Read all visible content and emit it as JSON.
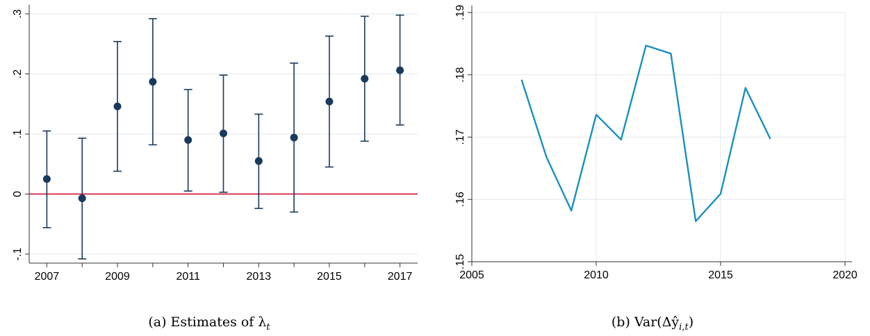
{
  "chart_data": [
    {
      "type": "scatter",
      "caption": "(a) Estimates of λ",
      "caption_subscript": "t",
      "x": [
        2007,
        2008,
        2009,
        2010,
        2011,
        2012,
        2013,
        2014,
        2015,
        2016,
        2017
      ],
      "series": [
        {
          "values": [
            0.025,
            -0.007,
            0.146,
            0.187,
            0.09,
            0.101,
            0.055,
            0.094,
            0.154,
            0.192,
            0.206
          ],
          "ci_low": [
            -0.056,
            -0.108,
            0.038,
            0.082,
            0.005,
            0.003,
            -0.024,
            -0.03,
            0.045,
            0.088,
            0.115
          ],
          "ci_high": [
            0.105,
            0.093,
            0.254,
            0.292,
            0.174,
            0.198,
            0.133,
            0.218,
            0.263,
            0.296,
            0.298
          ]
        }
      ],
      "reference_line": {
        "y": 0,
        "color": "#d1223f"
      },
      "xticks": [
        2007,
        2009,
        2011,
        2013,
        2015,
        2017
      ],
      "xticks_minor": [
        2008,
        2010,
        2012,
        2014,
        2016
      ],
      "yticks": [
        -0.1,
        0,
        0.1,
        0.2,
        0.3
      ],
      "ytick_labels": [
        "-.1",
        "0",
        ".1",
        ".2",
        ".3"
      ],
      "xlim": [
        2006.5,
        2017.5
      ],
      "ylim": [
        -0.115,
        0.315
      ],
      "grid": "horizontal",
      "colors": {
        "marker": "#1a3a5c",
        "grid": "#e6ecf0"
      }
    },
    {
      "type": "line",
      "caption": "(b) Var(Δŷ",
      "caption_subscript": "i,t",
      "caption_close": ")",
      "x": [
        2007,
        2008,
        2009,
        2010,
        2011,
        2012,
        2013,
        2014,
        2015,
        2016,
        2017
      ],
      "series": [
        {
          "values": [
            0.1792,
            0.1668,
            0.1582,
            0.1736,
            0.1696,
            0.1847,
            0.1834,
            0.1565,
            0.1609,
            0.1779,
            0.1697
          ]
        }
      ],
      "xticks": [
        2005,
        2010,
        2015,
        2020
      ],
      "xtick_labels": [
        "2005",
        "2010",
        "2015",
        "2020"
      ],
      "yticks": [
        0.15,
        0.16,
        0.17,
        0.18,
        0.19
      ],
      "ytick_labels": [
        ".15",
        ".16",
        ".17",
        ".18",
        ".19"
      ],
      "xlim": [
        2005,
        2020
      ],
      "ylim": [
        0.15,
        0.19
      ],
      "grid": "both",
      "colors": {
        "line": "#1a8fbf",
        "grid": "#e6ecf0"
      }
    }
  ]
}
